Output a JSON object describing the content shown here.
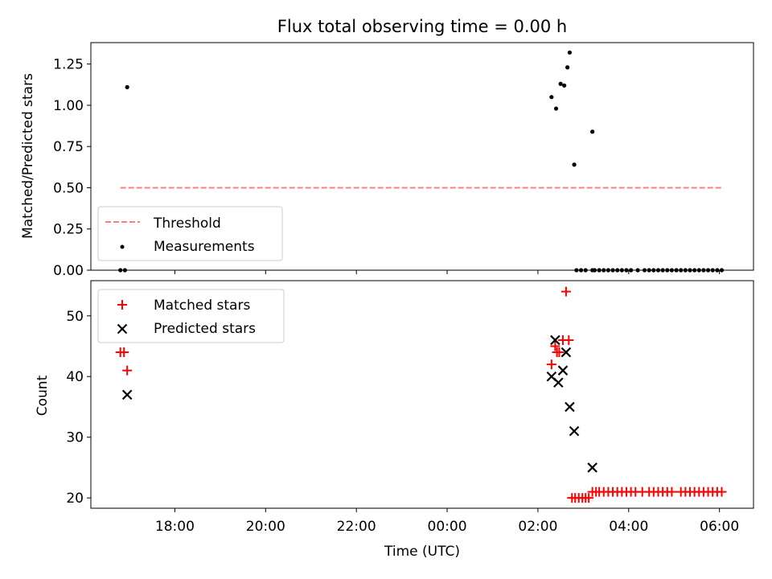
{
  "chart_data": [
    {
      "type": "scatter",
      "title": "Flux total observing time = 0.00 h",
      "ylabel": "Matched/Predicted stars",
      "xlabel": "",
      "ylim": [
        0,
        1.38
      ],
      "yticks": [
        "0.00",
        "0.25",
        "0.50",
        "0.75",
        "1.00",
        "1.25"
      ],
      "legend_position": "lower-left",
      "threshold": {
        "name": "Threshold",
        "value": 0.5,
        "x_start": 16.8,
        "x_end": 30.05,
        "color": "#ff7f7f",
        "style": "dashed"
      },
      "series": [
        {
          "name": "Measurements",
          "color": "#000000",
          "marker": "dot",
          "x": [
            16.8,
            16.9,
            16.95,
            26.3,
            26.4,
            26.5,
            26.58,
            26.65,
            26.7,
            26.8,
            26.85,
            26.95,
            27.05,
            27.2,
            27.2,
            27.25,
            27.35,
            27.45,
            27.55,
            27.65,
            27.75,
            27.85,
            27.95,
            28.05,
            28.2,
            28.35,
            28.45,
            28.55,
            28.65,
            28.75,
            28.85,
            28.95,
            29.05,
            29.15,
            29.25,
            29.35,
            29.45,
            29.55,
            29.65,
            29.75,
            29.85,
            29.95,
            30.05
          ],
          "y": [
            0.0,
            0.0,
            1.11,
            1.05,
            0.98,
            1.13,
            1.12,
            1.23,
            1.32,
            0.64,
            0.0,
            0.0,
            0.0,
            0.84,
            0.0,
            0.0,
            0.0,
            0.0,
            0.0,
            0.0,
            0.0,
            0.0,
            0.0,
            0.0,
            0.0,
            0.0,
            0.0,
            0.0,
            0.0,
            0.0,
            0.0,
            0.0,
            0.0,
            0.0,
            0.0,
            0.0,
            0.0,
            0.0,
            0.0,
            0.0,
            0.0,
            0.0,
            0.0
          ]
        }
      ]
    },
    {
      "type": "scatter",
      "title": "",
      "ylabel": "Count",
      "xlabel": "Time (UTC)",
      "ylim": [
        18.3,
        55.8
      ],
      "yticks": [
        20,
        30,
        40,
        50
      ],
      "legend_position": "upper-left",
      "series": [
        {
          "name": "Matched stars",
          "color": "#ff0000",
          "marker": "plus",
          "x": [
            16.8,
            16.88,
            16.95,
            26.3,
            26.38,
            26.42,
            26.47,
            26.55,
            26.62,
            26.68,
            26.75,
            26.82,
            26.9,
            26.98,
            27.05,
            27.12,
            27.2,
            27.28,
            27.35,
            27.45,
            27.55,
            27.65,
            27.75,
            27.85,
            27.95,
            28.05,
            28.15,
            28.3,
            28.45,
            28.55,
            28.65,
            28.75,
            28.85,
            28.95,
            29.15,
            29.25,
            29.35,
            29.45,
            29.55,
            29.65,
            29.75,
            29.85,
            29.95,
            30.05
          ],
          "y": [
            44,
            44,
            41,
            42,
            45,
            44,
            44,
            46,
            54,
            46,
            20,
            20,
            20,
            20,
            20,
            20,
            21,
            21,
            21,
            21,
            21,
            21,
            21,
            21,
            21,
            21,
            21,
            21,
            21,
            21,
            21,
            21,
            21,
            21,
            21,
            21,
            21,
            21,
            21,
            21,
            21,
            21,
            21,
            21
          ]
        },
        {
          "name": "Predicted stars",
          "color": "#000000",
          "marker": "x",
          "x": [
            16.95,
            26.3,
            26.38,
            26.45,
            26.55,
            26.62,
            26.7,
            26.8,
            27.2
          ],
          "y": [
            37,
            40,
            46,
            39,
            41,
            44,
            35,
            31,
            25
          ]
        }
      ]
    }
  ],
  "x_axis": {
    "range_hours": [
      16.15,
      30.75
    ],
    "ticks": [
      {
        "value": 18,
        "label": "18:00"
      },
      {
        "value": 20,
        "label": "20:00"
      },
      {
        "value": 22,
        "label": "22:00"
      },
      {
        "value": 24,
        "label": "00:00"
      },
      {
        "value": 26,
        "label": "02:00"
      },
      {
        "value": 28,
        "label": "04:00"
      },
      {
        "value": 30,
        "label": "06:00"
      }
    ]
  }
}
